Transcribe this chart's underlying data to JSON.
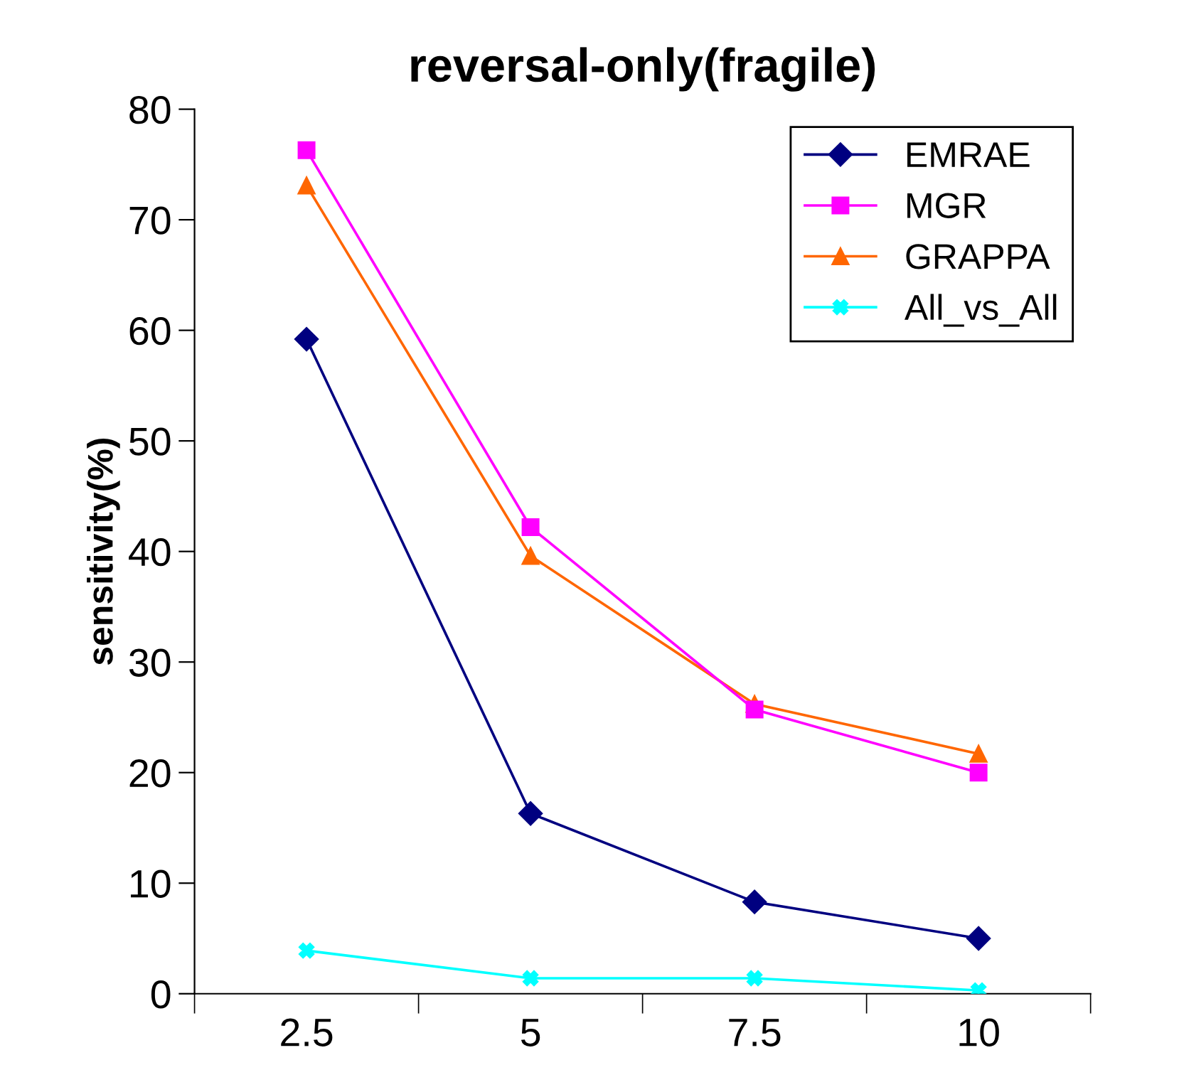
{
  "chart_data": {
    "type": "line",
    "title": "reversal-only(fragile)",
    "ylabel": "sensitivity(%)",
    "categories": [
      "2.5",
      "5",
      "7.5",
      "10"
    ],
    "ylim": [
      0,
      80
    ],
    "yticks": [
      0,
      10,
      20,
      30,
      40,
      50,
      60,
      70,
      80
    ],
    "grid": false,
    "legend": "top right",
    "series": [
      {
        "name": "EMRAE",
        "color": "#000080",
        "marker": "diamond",
        "values": [
          59.2,
          16.3,
          8.3,
          5.0
        ]
      },
      {
        "name": "MGR",
        "color": "#ff00ff",
        "marker": "square",
        "values": [
          76.3,
          42.2,
          25.7,
          20.0
        ]
      },
      {
        "name": "GRAPPA",
        "color": "#ff6600",
        "marker": "triangle",
        "values": [
          73.1,
          39.6,
          26.2,
          21.7
        ]
      },
      {
        "name": "All_vs_All",
        "color": "#00ffff",
        "marker": "cross",
        "values": [
          3.9,
          1.4,
          1.4,
          0.3
        ]
      }
    ]
  }
}
